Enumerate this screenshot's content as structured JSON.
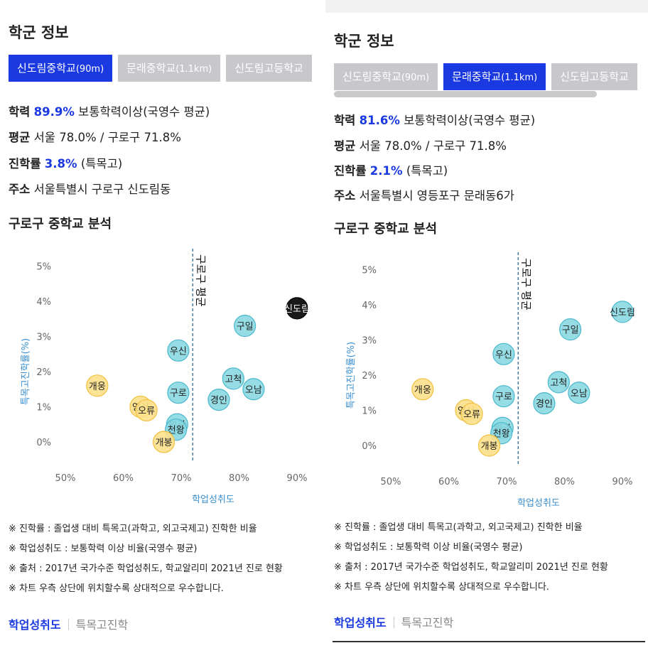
{
  "left": {
    "section_title": "학군 정보",
    "tabs": [
      {
        "name": "신도림중학교",
        "dist": "(90m)",
        "active": true
      },
      {
        "name": "문래중학교",
        "dist": "(1.1km)",
        "active": false
      },
      {
        "name": "신도림고등학교",
        "dist": "",
        "active": false
      }
    ],
    "info": {
      "achievement_label": "학력",
      "achievement_value": "89.9%",
      "achievement_suffix": "보통학력이상(국영수 평균)",
      "average_label": "평균",
      "average_value": "서울 78.0% / 구로구 71.8%",
      "admission_label": "진학률",
      "admission_value": "3.8%",
      "admission_suffix": "(특목고)",
      "address_label": "주소",
      "address_value": "서울특별시 구로구 신도림동"
    },
    "chart_title": "구로구 중학교 분석",
    "highlight": "신도림"
  },
  "right": {
    "section_title": "학군 정보",
    "tabs": [
      {
        "name": "신도림중학교",
        "dist": "(90m)",
        "active": false
      },
      {
        "name": "문래중학교",
        "dist": "(1.1km)",
        "active": true
      },
      {
        "name": "신도림고등학교",
        "dist": "",
        "active": false
      }
    ],
    "info": {
      "achievement_label": "학력",
      "achievement_value": "81.6%",
      "achievement_suffix": "보통학력이상(국영수 평균)",
      "average_label": "평균",
      "average_value": "서울 78.0% / 구로구 71.8%",
      "admission_label": "진학률",
      "admission_value": "2.1%",
      "admission_suffix": "(특목고)",
      "address_label": "주소",
      "address_value": "서울특별시 영등포구 문래동6가"
    },
    "chart_title": "구로구 중학교 분석",
    "highlight": ""
  },
  "chart_data": {
    "type": "scatter",
    "xlabel": "학업성취도",
    "ylabel": "특목고진학률(%)",
    "x_ticks": [
      "50%",
      "60%",
      "70%",
      "80%",
      "90%"
    ],
    "y_ticks": [
      "0%",
      "1%",
      "2%",
      "3%",
      "4%",
      "5%"
    ],
    "xlim": [
      50,
      92
    ],
    "ylim": [
      -0.5,
      5.5
    ],
    "avg_line": {
      "x": 72,
      "label": "구로구 평균"
    },
    "colors": {
      "above": "#8ad8e2",
      "above_border": "#4ab8cc",
      "below": "#fde08a",
      "below_border": "#f0c040",
      "highlight": "#000000"
    },
    "points": [
      {
        "name": "신도림",
        "x": 90,
        "y": 3.8
      },
      {
        "name": "구일",
        "x": 81,
        "y": 3.3
      },
      {
        "name": "우신",
        "x": 69.5,
        "y": 2.6
      },
      {
        "name": "고척",
        "x": 79,
        "y": 1.8
      },
      {
        "name": "오남",
        "x": 82.5,
        "y": 1.5
      },
      {
        "name": "구로",
        "x": 69.5,
        "y": 1.4
      },
      {
        "name": "경인",
        "x": 76.5,
        "y": 1.2
      },
      {
        "name": "개웅",
        "x": 55.5,
        "y": 1.6
      },
      {
        "name": "영서",
        "x": 63,
        "y": 1.0
      },
      {
        "name": "오류",
        "x": 64,
        "y": 0.9
      },
      {
        "name": "원광",
        "x": 69.3,
        "y": 0.5
      },
      {
        "name": "천왕",
        "x": 69.1,
        "y": 0.35
      },
      {
        "name": "개봉",
        "x": 67,
        "y": 0.0
      }
    ]
  },
  "notes": [
    "※ 진학률 : 졸업생 대비 특목고(과학고, 외고국제고) 진학한 비율",
    "※ 학업성취도 : 보통학력 이상 비율(국영수 평균)",
    "※ 출처 : 2017년 국가수준 학업성취도, 학교알리미 2021년 진로 현황",
    "※ 차트 우측 상단에 위치할수록 상대적으로 우수합니다."
  ],
  "bottom_tabs": {
    "active": "학업성취도",
    "inactive": "특목고진학"
  }
}
